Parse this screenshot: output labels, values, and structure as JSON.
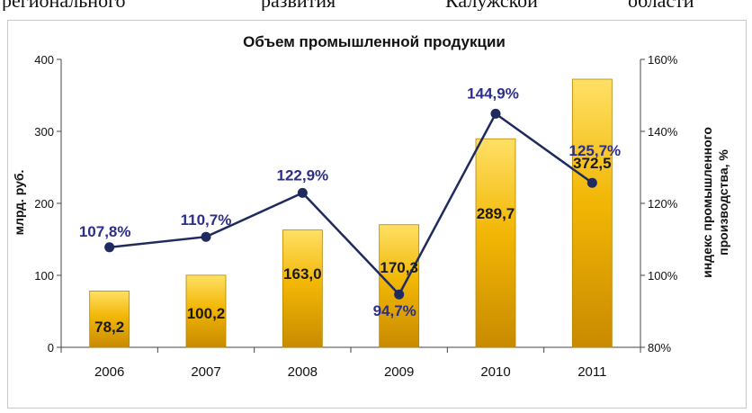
{
  "header_fragment": [
    "регионального",
    "развития",
    "Калужской",
    "области"
  ],
  "chart_data": {
    "type": "bar",
    "title": "Объем промышленной продукции",
    "categories": [
      "2006",
      "2007",
      "2008",
      "2009",
      "2010",
      "2011"
    ],
    "ylabel": "млрд. руб.",
    "y2label": [
      "индекс промышленного",
      "производства, %"
    ],
    "ylim": [
      0,
      400
    ],
    "yticks": [
      "0",
      "100",
      "200",
      "300",
      "400"
    ],
    "y2lim": [
      80,
      160
    ],
    "y2ticks": [
      "80%",
      "100%",
      "120%",
      "140%",
      "160%"
    ],
    "legend": "none",
    "grid": false,
    "series": [
      {
        "type": "bar",
        "axis": "left",
        "values": [
          78.2,
          100.2,
          163.0,
          170.3,
          289.7,
          372.5
        ],
        "labels": [
          "78,2",
          "100,2",
          "163,0",
          "170,3",
          "289,7",
          "372,5"
        ],
        "color": "#f2b705"
      },
      {
        "type": "line",
        "axis": "right",
        "values": [
          107.8,
          110.7,
          122.9,
          94.7,
          144.9,
          125.7
        ],
        "labels": [
          "107,8%",
          "110,7%",
          "122,9%",
          "94,7%",
          "144,9%",
          "125,7%"
        ],
        "color": "#1f2a5e"
      }
    ]
  }
}
